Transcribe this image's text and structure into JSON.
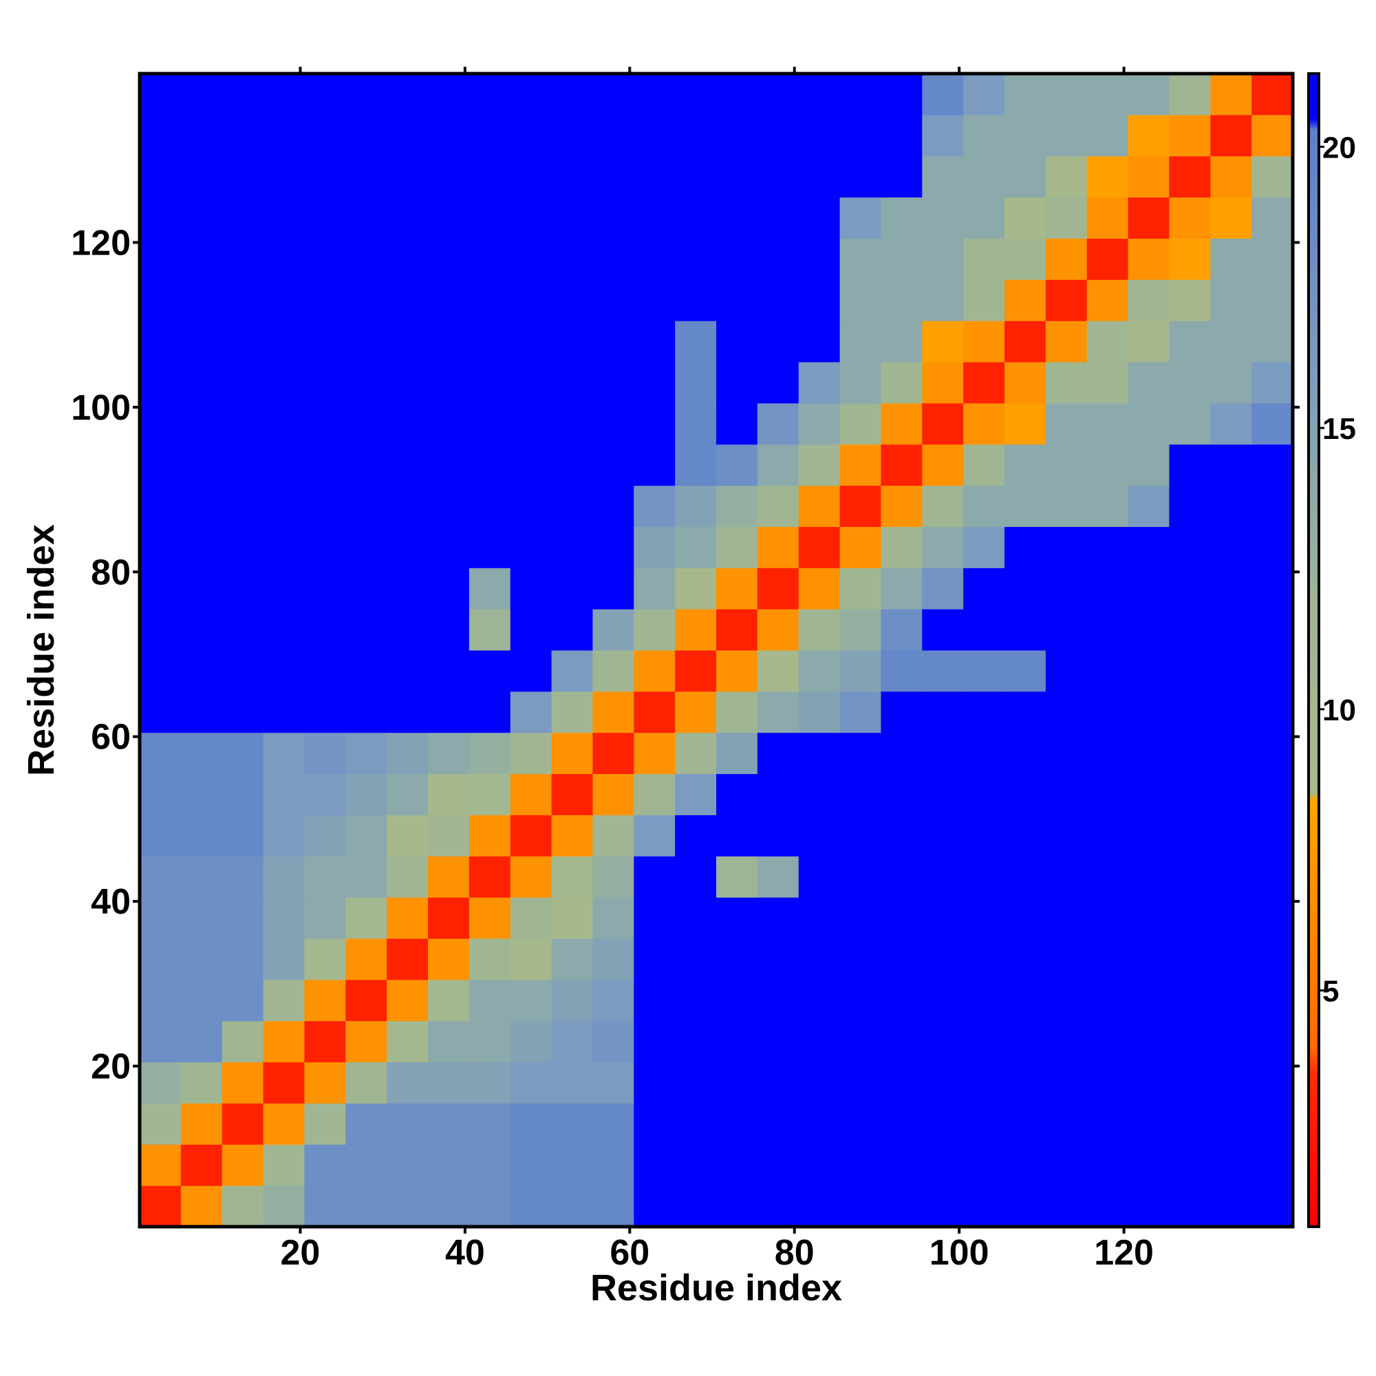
{
  "chart_data": {
    "type": "heatmap",
    "x_label": "Residue index",
    "y_label": "Residue index",
    "x": [
      3,
      8,
      13,
      18,
      23,
      28,
      33,
      38,
      43,
      48,
      53,
      58,
      63,
      68,
      73,
      78,
      83,
      88,
      93,
      98,
      103,
      108,
      113,
      118,
      123,
      128,
      133,
      138
    ],
    "y": [
      3,
      8,
      13,
      18,
      23,
      28,
      33,
      38,
      43,
      48,
      53,
      58,
      63,
      68,
      73,
      78,
      83,
      88,
      93,
      98,
      103,
      108,
      113,
      118,
      123,
      128,
      133,
      138
    ],
    "z": [
      [
        3,
        7,
        11,
        13,
        18,
        18,
        18,
        18,
        18,
        19,
        19,
        19,
        21,
        21,
        21,
        21,
        21,
        21,
        21,
        21,
        21,
        21,
        21,
        21,
        21,
        21,
        21,
        21
      ],
      [
        7,
        3,
        7,
        11,
        18,
        18,
        18,
        18,
        18,
        19,
        19,
        19,
        21,
        21,
        21,
        21,
        21,
        21,
        21,
        21,
        21,
        21,
        21,
        21,
        21,
        21,
        21,
        21
      ],
      [
        11,
        7,
        3,
        7,
        11,
        18,
        18,
        18,
        18,
        19,
        19,
        19,
        21,
        21,
        21,
        21,
        21,
        21,
        21,
        21,
        21,
        21,
        21,
        21,
        21,
        21,
        21,
        21
      ],
      [
        13,
        11,
        7,
        3,
        7,
        11,
        15,
        15,
        15,
        16,
        16,
        16,
        21,
        21,
        21,
        21,
        21,
        21,
        21,
        21,
        21,
        21,
        21,
        21,
        21,
        21,
        21,
        21
      ],
      [
        18,
        18,
        11,
        7,
        3,
        7,
        10,
        14,
        14,
        15,
        16,
        17,
        21,
        21,
        21,
        21,
        21,
        21,
        21,
        21,
        21,
        21,
        21,
        21,
        21,
        21,
        21,
        21
      ],
      [
        18,
        18,
        18,
        11,
        7,
        3,
        7,
        10,
        14,
        14,
        15,
        16,
        21,
        21,
        21,
        21,
        21,
        21,
        21,
        21,
        21,
        21,
        21,
        21,
        21,
        21,
        21,
        21
      ],
      [
        18,
        18,
        18,
        15,
        10,
        7,
        3,
        7,
        11,
        9,
        14,
        15,
        21,
        21,
        21,
        21,
        21,
        21,
        21,
        21,
        21,
        21,
        21,
        21,
        21,
        21,
        21,
        21
      ],
      [
        18,
        18,
        18,
        15,
        14,
        10,
        7,
        3,
        7,
        11,
        9,
        14,
        21,
        21,
        21,
        21,
        21,
        21,
        21,
        21,
        21,
        21,
        21,
        21,
        21,
        21,
        21,
        21
      ],
      [
        18,
        18,
        18,
        15,
        14,
        14,
        11,
        7,
        3,
        7,
        10,
        13,
        21,
        21,
        12,
        14,
        21,
        21,
        21,
        21,
        21,
        21,
        21,
        21,
        21,
        21,
        21,
        21
      ],
      [
        19,
        19,
        19,
        16,
        15,
        14,
        9,
        11,
        7,
        3,
        7,
        11,
        16,
        21,
        21,
        21,
        21,
        21,
        21,
        21,
        21,
        21,
        21,
        21,
        21,
        21,
        21,
        21
      ],
      [
        19,
        19,
        19,
        16,
        16,
        15,
        14,
        9,
        10,
        7,
        3,
        7,
        11,
        16,
        21,
        21,
        21,
        21,
        21,
        21,
        21,
        21,
        21,
        21,
        21,
        21,
        21,
        21
      ],
      [
        19,
        19,
        19,
        16,
        17,
        16,
        15,
        14,
        13,
        11,
        7,
        3,
        7,
        11,
        15,
        21,
        21,
        21,
        21,
        21,
        21,
        21,
        21,
        21,
        21,
        21,
        21,
        21
      ],
      [
        21,
        21,
        21,
        21,
        21,
        21,
        21,
        21,
        21,
        16,
        11,
        7,
        3,
        7,
        11,
        14,
        15,
        17,
        21,
        21,
        21,
        21,
        21,
        21,
        21,
        21,
        21,
        21
      ],
      [
        21,
        21,
        21,
        21,
        21,
        21,
        21,
        21,
        21,
        21,
        16,
        11,
        7,
        3,
        7,
        9,
        14,
        15,
        19,
        19,
        19,
        19,
        21,
        21,
        21,
        21,
        21,
        21
      ],
      [
        21,
        21,
        21,
        21,
        21,
        21,
        21,
        21,
        12,
        21,
        21,
        15,
        11,
        7,
        3,
        7,
        11,
        13,
        18,
        21,
        21,
        21,
        21,
        21,
        21,
        21,
        21,
        21
      ],
      [
        21,
        21,
        21,
        21,
        21,
        21,
        21,
        21,
        14,
        21,
        21,
        21,
        14,
        9,
        7,
        3,
        7,
        11,
        14,
        17,
        21,
        21,
        21,
        21,
        21,
        21,
        21,
        21
      ],
      [
        21,
        21,
        21,
        21,
        21,
        21,
        21,
        21,
        21,
        21,
        21,
        21,
        15,
        14,
        11,
        7,
        3,
        7,
        11,
        14,
        16,
        21,
        21,
        21,
        21,
        21,
        21,
        21
      ],
      [
        21,
        21,
        21,
        21,
        21,
        21,
        21,
        21,
        21,
        21,
        21,
        21,
        17,
        15,
        13,
        11,
        7,
        3,
        7,
        11,
        14,
        14,
        14,
        14,
        16,
        21,
        21,
        21
      ],
      [
        21,
        21,
        21,
        21,
        21,
        21,
        21,
        21,
        21,
        21,
        21,
        21,
        21,
        19,
        18,
        14,
        11,
        7,
        3,
        7,
        11,
        14,
        14,
        14,
        14,
        21,
        21,
        21
      ],
      [
        21,
        21,
        21,
        21,
        21,
        21,
        21,
        21,
        21,
        21,
        21,
        21,
        21,
        19,
        21,
        17,
        14,
        11,
        7,
        3,
        7,
        8,
        14,
        14,
        14,
        14,
        16,
        19
      ],
      [
        21,
        21,
        21,
        21,
        21,
        21,
        21,
        21,
        21,
        21,
        21,
        21,
        21,
        19,
        21,
        21,
        16,
        14,
        11,
        7,
        3,
        7,
        11,
        11,
        14,
        14,
        14,
        16
      ],
      [
        21,
        21,
        21,
        21,
        21,
        21,
        21,
        21,
        21,
        21,
        21,
        21,
        21,
        19,
        21,
        21,
        21,
        14,
        14,
        8,
        7,
        3,
        7,
        11,
        9,
        14,
        14,
        14
      ],
      [
        21,
        21,
        21,
        21,
        21,
        21,
        21,
        21,
        21,
        21,
        21,
        21,
        21,
        21,
        21,
        21,
        21,
        14,
        14,
        14,
        11,
        7,
        3,
        7,
        11,
        9,
        14,
        14
      ],
      [
        21,
        21,
        21,
        21,
        21,
        21,
        21,
        21,
        21,
        21,
        21,
        21,
        21,
        21,
        21,
        21,
        21,
        14,
        14,
        14,
        11,
        11,
        7,
        3,
        7,
        8,
        14,
        14
      ],
      [
        21,
        21,
        21,
        21,
        21,
        21,
        21,
        21,
        21,
        21,
        21,
        21,
        21,
        21,
        21,
        21,
        21,
        16,
        14,
        14,
        14,
        9,
        11,
        7,
        3,
        7,
        8,
        14
      ],
      [
        21,
        21,
        21,
        21,
        21,
        21,
        21,
        21,
        21,
        21,
        21,
        21,
        21,
        21,
        21,
        21,
        21,
        21,
        21,
        14,
        14,
        14,
        9,
        8,
        7,
        3,
        7,
        11
      ],
      [
        21,
        21,
        21,
        21,
        21,
        21,
        21,
        21,
        21,
        21,
        21,
        21,
        21,
        21,
        21,
        21,
        21,
        21,
        21,
        16,
        14,
        14,
        14,
        14,
        8,
        7,
        3,
        7
      ],
      [
        21,
        21,
        21,
        21,
        21,
        21,
        21,
        21,
        21,
        21,
        21,
        21,
        21,
        21,
        21,
        21,
        21,
        21,
        21,
        19,
        16,
        14,
        14,
        14,
        14,
        11,
        7,
        3
      ]
    ],
    "xlim": [
      0.5,
      140.5
    ],
    "ylim": [
      0.5,
      140.5
    ],
    "xticks": [
      20,
      40,
      60,
      80,
      100,
      120
    ],
    "yticks": [
      20,
      40,
      60,
      80,
      100,
      120
    ],
    "zlim": [
      0.8,
      21.3
    ],
    "zticks": [
      5,
      10,
      15,
      20
    ],
    "colorscale": [
      [
        0.8,
        "#ff0000"
      ],
      [
        3.5,
        "#ff2a00"
      ],
      [
        4,
        "#ff6a00"
      ],
      [
        8.4,
        "#ffa500"
      ],
      [
        8.5,
        "#a9ba8a"
      ],
      [
        12,
        "#9db596"
      ],
      [
        16,
        "#7b9cc0"
      ],
      [
        20.3,
        "#5b7fcc"
      ],
      [
        20.5,
        "#0000ff"
      ],
      [
        21.3,
        "#0000ff"
      ]
    ]
  }
}
